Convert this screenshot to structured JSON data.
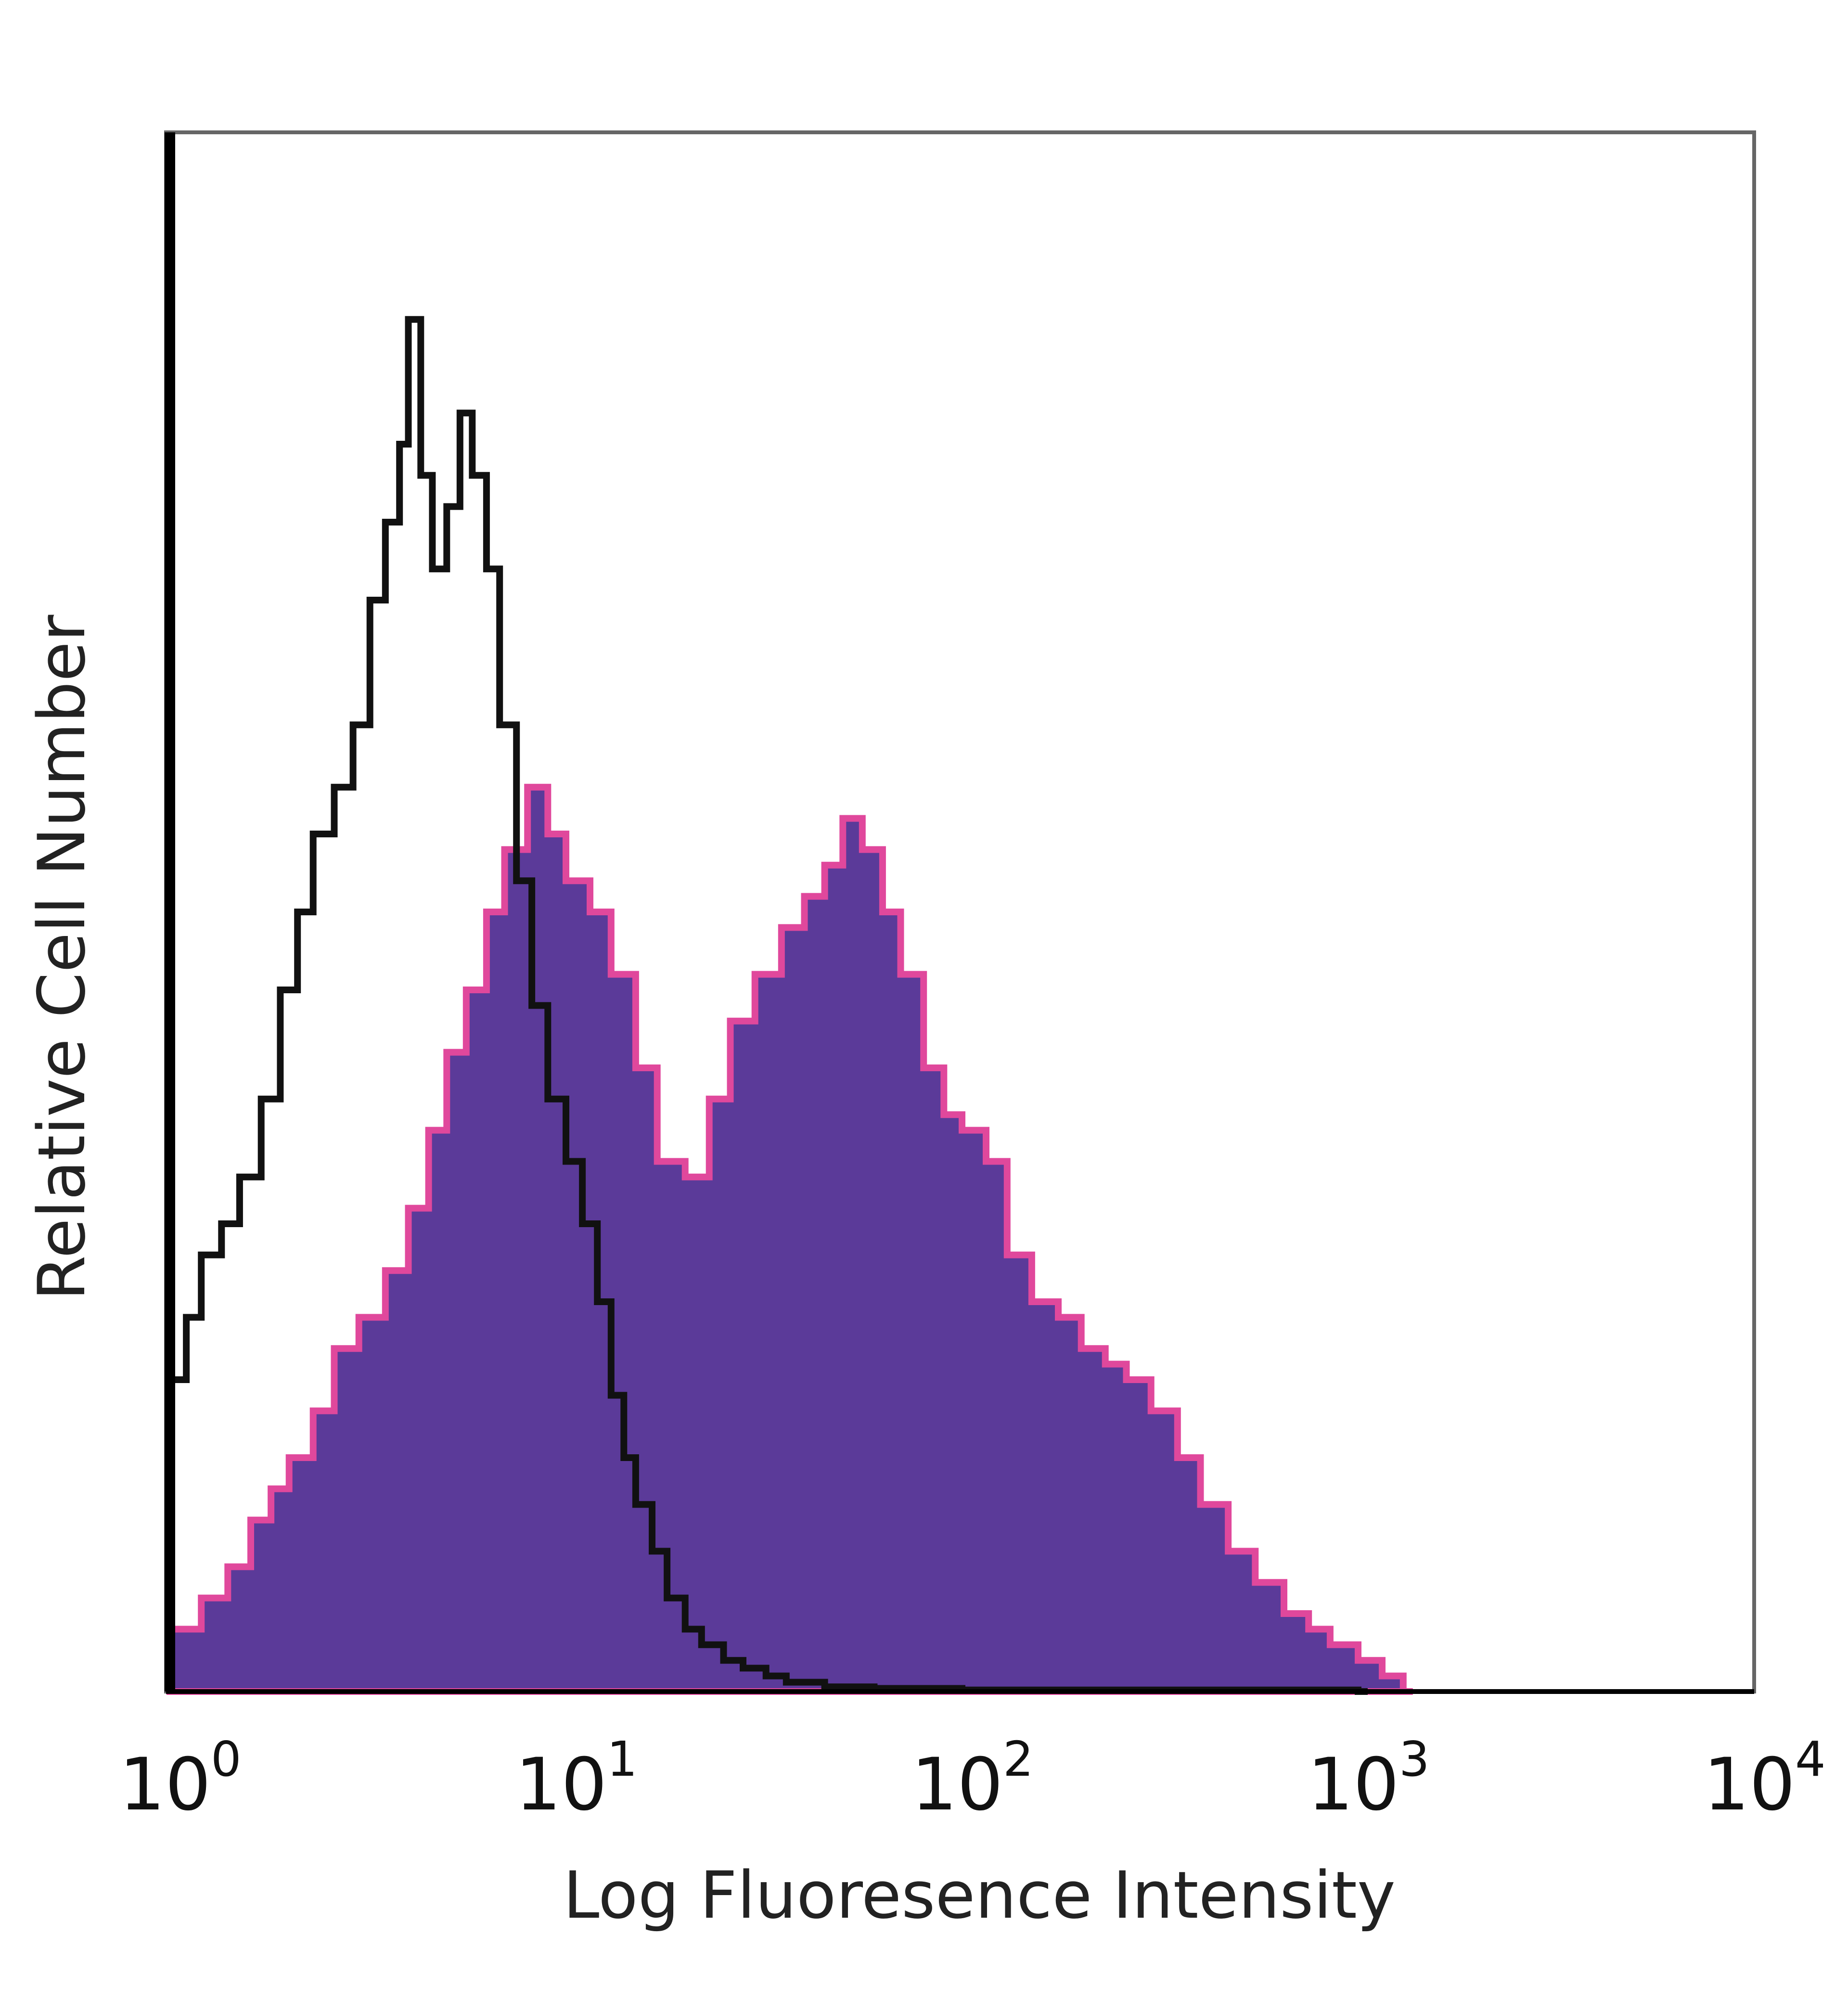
{
  "chart_data": {
    "type": "area",
    "xlabel": "Log Fluoresence Intensity",
    "ylabel": "Relative Cell Number",
    "xscale": "log",
    "xlim": [
      1,
      10000
    ],
    "ylim": [
      0,
      100
    ],
    "x_ticks": [
      {
        "value": 1,
        "base": "10",
        "exp": "0"
      },
      {
        "value": 10,
        "base": "10",
        "exp": "1"
      },
      {
        "value": 100,
        "base": "10",
        "exp": "2"
      },
      {
        "value": 1000,
        "base": "10",
        "exp": "3"
      },
      {
        "value": 10000,
        "base": "10",
        "exp": "4"
      }
    ],
    "grid": false,
    "legend": "none",
    "series": [
      {
        "style": "filled",
        "fill_color": "#5b3a99",
        "edge_color": "#e0489c",
        "x": [
          1.0,
          1.2,
          1.4,
          1.6,
          1.8,
          2.0,
          2.3,
          2.6,
          3.0,
          3.5,
          4.0,
          4.5,
          5.0,
          5.6,
          6.3,
          7.0,
          8.0,
          9.0,
          10.0,
          11.5,
          13.0,
          15.0,
          17.0,
          20.0,
          23.0,
          26.0,
          30.0,
          35.0,
          40.0,
          45.0,
          50.0,
          56.0,
          63.0,
          70.0,
          80.0,
          90.0,
          100.0,
          115.0,
          130.0,
          150.0,
          175.0,
          200.0,
          230.0,
          260.0,
          300.0,
          350.0,
          400.0,
          470.0,
          550.0,
          650.0,
          750.0,
          850.0,
          1000.0,
          1150.0,
          1300.0
        ],
        "y": [
          4,
          6,
          8,
          11,
          13,
          15,
          18,
          22,
          24,
          27,
          31,
          36,
          41,
          45,
          50,
          54,
          58,
          55,
          52,
          50,
          46,
          40,
          34,
          33,
          38,
          43,
          46,
          49,
          51,
          53,
          56,
          54,
          50,
          46,
          40,
          37,
          36,
          34,
          28,
          25,
          24,
          22,
          21,
          20,
          18,
          15,
          12,
          9,
          7,
          5,
          4,
          3,
          2,
          1,
          0
        ]
      },
      {
        "style": "outline",
        "line_color": "#111111",
        "x": [
          1.0,
          1.1,
          1.2,
          1.35,
          1.5,
          1.7,
          1.9,
          2.1,
          2.3,
          2.6,
          2.9,
          3.2,
          3.5,
          3.8,
          4.0,
          4.3,
          4.6,
          5.0,
          5.4,
          5.8,
          6.3,
          6.8,
          7.5,
          8.2,
          9.0,
          10.0,
          11.0,
          12.0,
          13.0,
          14.0,
          15.0,
          16.5,
          18.0,
          20.0,
          22.0,
          25.0,
          28.0,
          32.0,
          36.0,
          45.0,
          60.0,
          100.0,
          1000.0
        ],
        "y": [
          20,
          24,
          28,
          30,
          33,
          38,
          45,
          50,
          55,
          58,
          62,
          70,
          75,
          80,
          88,
          78,
          72,
          76,
          82,
          78,
          72,
          62,
          52,
          44,
          38,
          34,
          30,
          25,
          19,
          15,
          12,
          9,
          6,
          4,
          3,
          2,
          1.5,
          1,
          0.6,
          0.3,
          0.2,
          0.1,
          0
        ]
      }
    ]
  }
}
